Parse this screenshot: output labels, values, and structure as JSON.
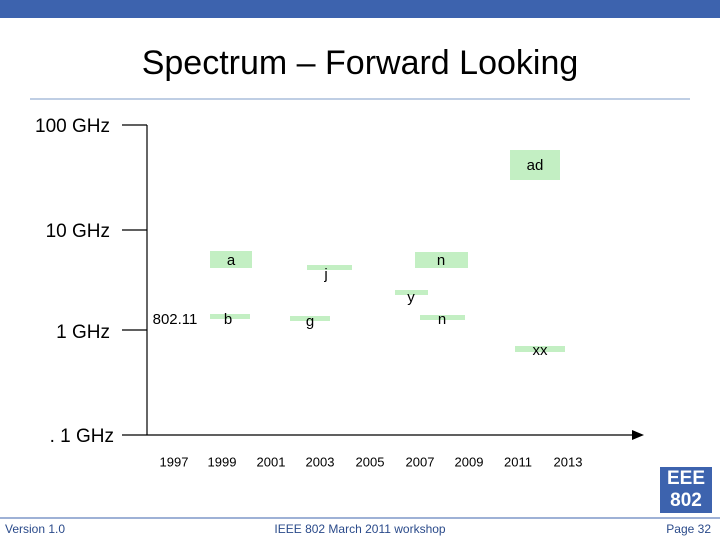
{
  "title": "Spectrum – Forward Looking",
  "y_axis_labels": [
    "100 GHz",
    "10 GHz",
    "1 GHz",
    ". 1 GHz"
  ],
  "x_axis_labels": [
    "1997",
    "1999",
    "2001",
    "2003",
    "2005",
    "2007",
    "2009",
    "2011",
    "2013"
  ],
  "items": [
    {
      "label": "ad"
    },
    {
      "label": "a"
    },
    {
      "label": "n"
    },
    {
      "label": "j"
    },
    {
      "label": "y"
    },
    {
      "label": "802.11"
    },
    {
      "label": "b"
    },
    {
      "label": "g"
    },
    {
      "label": "n"
    },
    {
      "label": "xx"
    }
  ],
  "logo": [
    "EEE",
    "802"
  ],
  "footer": {
    "left": "Version 1.0",
    "center": "IEEE 802 March 2011 workshop",
    "right": "Page 32"
  }
}
